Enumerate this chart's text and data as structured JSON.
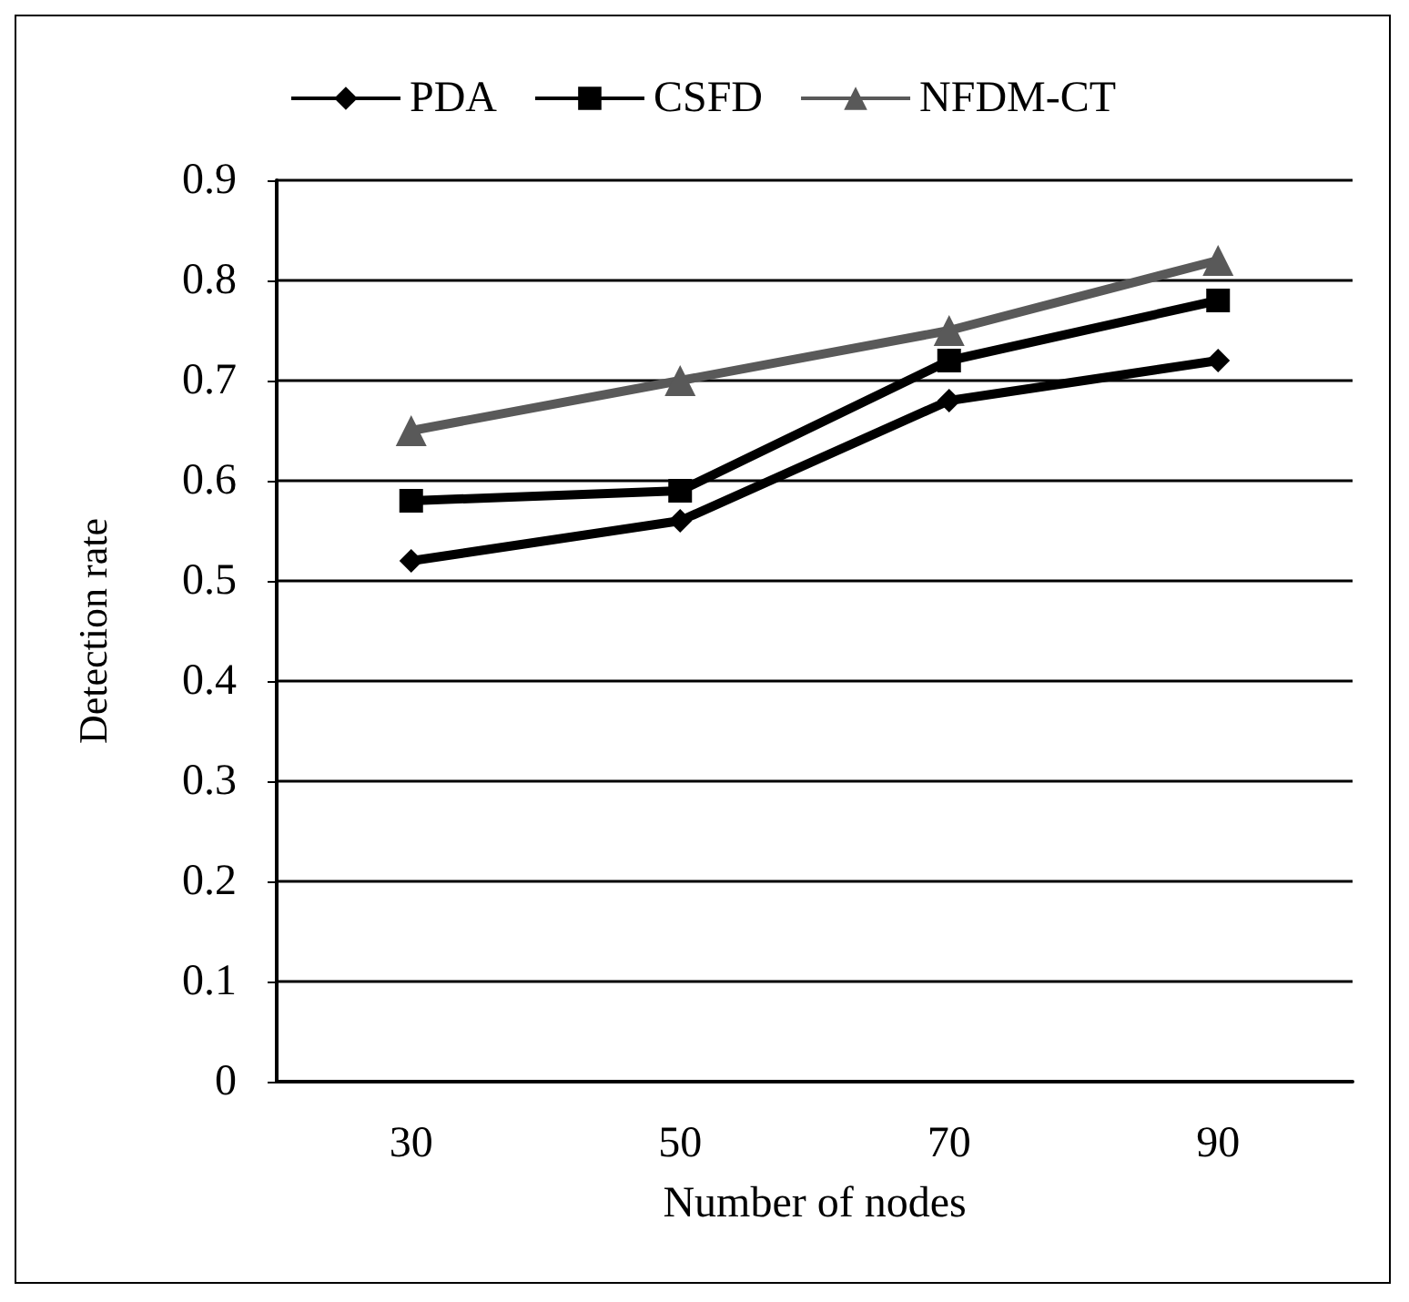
{
  "chart_data": {
    "type": "line",
    "xlabel": "Number of nodes",
    "ylabel": "Detection rate",
    "categories": [
      "30",
      "50",
      "70",
      "90"
    ],
    "series": [
      {
        "name": "PDA",
        "color": "#000000",
        "marker": "diamond",
        "values": [
          0.52,
          0.56,
          0.68,
          0.72
        ]
      },
      {
        "name": "CSFD",
        "color": "#000000",
        "marker": "square",
        "values": [
          0.58,
          0.59,
          0.72,
          0.78
        ]
      },
      {
        "name": "NFDM-CT",
        "color": "#595959",
        "marker": "triangle",
        "values": [
          0.65,
          0.7,
          0.75,
          0.82
        ]
      }
    ],
    "ylim": [
      0,
      0.9
    ],
    "yticks": [
      0,
      0.1,
      0.2,
      0.3,
      0.4,
      0.5,
      0.6,
      0.7,
      0.8,
      0.9
    ],
    "grid": "y",
    "legend": "top"
  }
}
